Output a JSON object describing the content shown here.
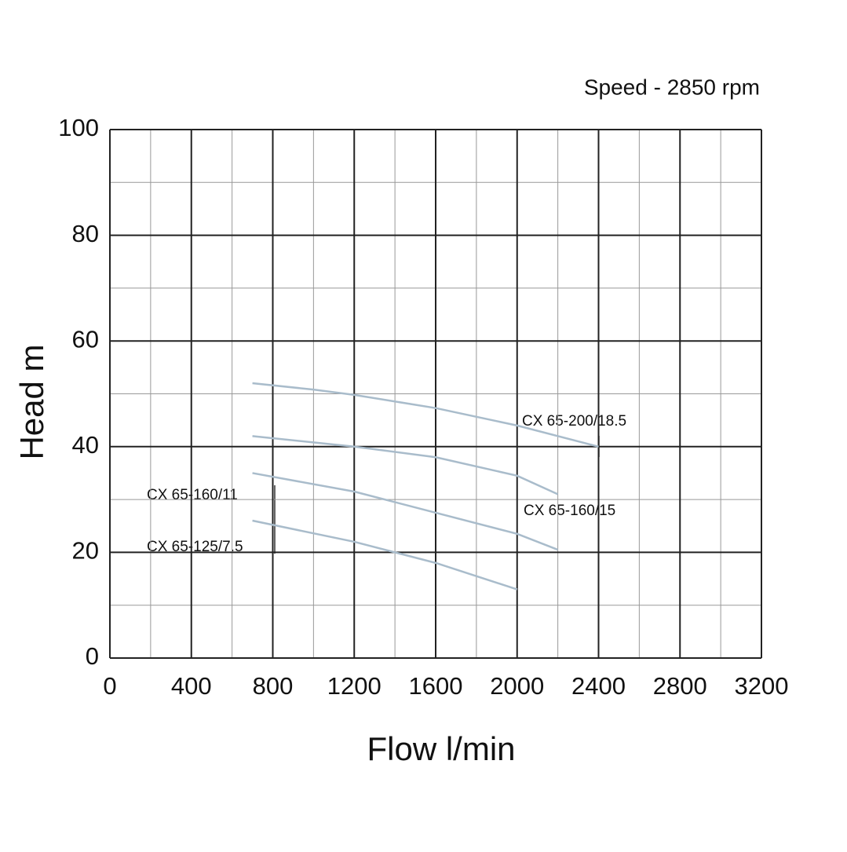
{
  "chart_data": {
    "type": "line",
    "annotation": "Speed - 2850 rpm",
    "x_label": "Flow l/min",
    "y_label": "Head m",
    "xlim": [
      0,
      3200
    ],
    "xticks": [
      0,
      400,
      800,
      1200,
      1600,
      2000,
      2400,
      2800,
      3200
    ],
    "ylim": [
      0,
      100
    ],
    "yticks": [
      0,
      20,
      40,
      60,
      80,
      100
    ],
    "grid": true,
    "minor_grid": true,
    "series": [
      {
        "name": "CX 65-200/18.5",
        "color": "#a9bccb",
        "x": [
          700,
          1000,
          1200,
          1600,
          2000,
          2400
        ],
        "values": [
          52,
          50.8,
          49.8,
          47.3,
          44,
          40
        ]
      },
      {
        "name": "CX 65-160/15",
        "color": "#a9bccb",
        "x": [
          700,
          1200,
          1600,
          2000,
          2200
        ],
        "values": [
          42,
          40,
          38,
          34.5,
          31
        ]
      },
      {
        "name": "CX 65-160/11",
        "color": "#a9bccb",
        "x": [
          700,
          1200,
          1600,
          2000,
          2200
        ],
        "values": [
          35,
          31.5,
          27.5,
          23.5,
          20.5
        ]
      },
      {
        "name": "CX 65-125/7.5",
        "color": "#a9bccb",
        "x": [
          700,
          1200,
          1600,
          2000
        ],
        "values": [
          26,
          22,
          18,
          13
        ]
      }
    ]
  }
}
